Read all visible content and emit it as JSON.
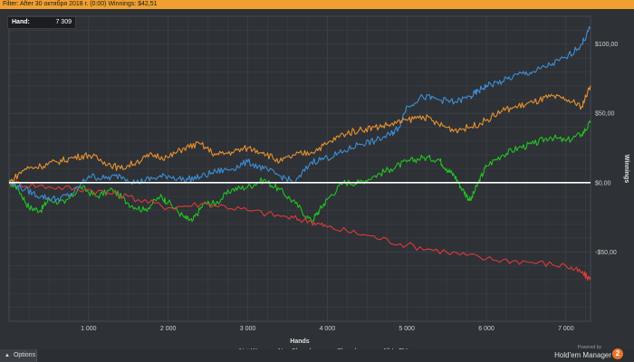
{
  "header": {
    "filter_text": "Filter: After 30 октября 2018 г. (0:00)  Winnings: $42,51"
  },
  "hand_box": {
    "label": "Hand:",
    "value": "7 309"
  },
  "options_label": "Options",
  "brand": {
    "powered_by": "Powered by",
    "name": "Hold'em Manager",
    "logo_text": "2"
  },
  "colors": {
    "background": "#2e3136",
    "grid": "#454950",
    "zero_line": "#ffffff",
    "net_won": "#22c322",
    "non_showdown": "#dd3a3a",
    "showdown": "#3d8fd6",
    "all_in_ev": "#e8922e"
  },
  "chart_data": {
    "type": "line",
    "xlabel": "Hands",
    "ylabel": "Winnings",
    "xlim": [
      0,
      7309
    ],
    "ylim": [
      -100,
      120
    ],
    "x_ticks": [
      1000,
      2000,
      3000,
      4000,
      5000,
      6000,
      7000
    ],
    "x_tick_labels": [
      "1 000",
      "2 000",
      "3 000",
      "4 000",
      "5 000",
      "6 000",
      "7 000"
    ],
    "y_ticks": [
      100,
      50,
      0,
      -50
    ],
    "y_tick_labels": [
      "$100,00",
      "$50,00",
      "$0,00",
      "-$50,00"
    ],
    "grid": true,
    "legend_position": "bottom-center",
    "series": [
      {
        "name": "Net Won",
        "color": "#22c322",
        "points": [
          [
            0,
            0
          ],
          [
            100,
            -3
          ],
          [
            250,
            -18
          ],
          [
            400,
            -20
          ],
          [
            500,
            -12
          ],
          [
            700,
            -15
          ],
          [
            900,
            -3
          ],
          [
            1100,
            -10
          ],
          [
            1300,
            -5
          ],
          [
            1500,
            -15
          ],
          [
            1700,
            -20
          ],
          [
            1900,
            -10
          ],
          [
            2000,
            -14
          ],
          [
            2200,
            -25
          ],
          [
            2300,
            -28
          ],
          [
            2450,
            -15
          ],
          [
            2600,
            -15
          ],
          [
            2800,
            -5
          ],
          [
            3000,
            -3
          ],
          [
            3200,
            2
          ],
          [
            3400,
            -5
          ],
          [
            3600,
            -15
          ],
          [
            3800,
            -28
          ],
          [
            3900,
            -20
          ],
          [
            4000,
            -12
          ],
          [
            4200,
            0
          ],
          [
            4400,
            0
          ],
          [
            4600,
            5
          ],
          [
            4800,
            10
          ],
          [
            5000,
            15
          ],
          [
            5200,
            18
          ],
          [
            5400,
            17
          ],
          [
            5500,
            10
          ],
          [
            5600,
            5
          ],
          [
            5700,
            -5
          ],
          [
            5800,
            -13
          ],
          [
            5900,
            0
          ],
          [
            6000,
            12
          ],
          [
            6200,
            20
          ],
          [
            6400,
            25
          ],
          [
            6600,
            28
          ],
          [
            6800,
            33
          ],
          [
            7000,
            30
          ],
          [
            7200,
            35
          ],
          [
            7309,
            43
          ]
        ]
      },
      {
        "name": "Non Showdown",
        "color": "#dd3a3a",
        "points": [
          [
            0,
            0
          ],
          [
            500,
            -3
          ],
          [
            1000,
            -5
          ],
          [
            1500,
            -10
          ],
          [
            2000,
            -18
          ],
          [
            2500,
            -15
          ],
          [
            3000,
            -20
          ],
          [
            3500,
            -25
          ],
          [
            3800,
            -28
          ],
          [
            4000,
            -32
          ],
          [
            4500,
            -38
          ],
          [
            5000,
            -45
          ],
          [
            5500,
            -50
          ],
          [
            6000,
            -55
          ],
          [
            6500,
            -57
          ],
          [
            7000,
            -60
          ],
          [
            7200,
            -65
          ],
          [
            7309,
            -70
          ]
        ]
      },
      {
        "name": "Showdown",
        "color": "#3d8fd6",
        "points": [
          [
            0,
            0
          ],
          [
            200,
            -5
          ],
          [
            400,
            -10
          ],
          [
            600,
            -12
          ],
          [
            800,
            -8
          ],
          [
            1000,
            5
          ],
          [
            1200,
            3
          ],
          [
            1400,
            5
          ],
          [
            1600,
            0
          ],
          [
            1800,
            3
          ],
          [
            2000,
            5
          ],
          [
            2200,
            2
          ],
          [
            2400,
            4
          ],
          [
            2600,
            8
          ],
          [
            2800,
            10
          ],
          [
            3000,
            15
          ],
          [
            3200,
            10
          ],
          [
            3400,
            5
          ],
          [
            3600,
            0
          ],
          [
            3800,
            15
          ],
          [
            4000,
            18
          ],
          [
            4200,
            22
          ],
          [
            4400,
            28
          ],
          [
            4600,
            30
          ],
          [
            4800,
            35
          ],
          [
            4900,
            40
          ],
          [
            5000,
            55
          ],
          [
            5200,
            62
          ],
          [
            5400,
            60
          ],
          [
            5600,
            58
          ],
          [
            5800,
            62
          ],
          [
            5900,
            66
          ],
          [
            6000,
            70
          ],
          [
            6200,
            73
          ],
          [
            6400,
            78
          ],
          [
            6600,
            80
          ],
          [
            6800,
            85
          ],
          [
            7000,
            90
          ],
          [
            7200,
            100
          ],
          [
            7309,
            112
          ]
        ]
      },
      {
        "name": "All-In EV",
        "color": "#e8922e",
        "points": [
          [
            0,
            0
          ],
          [
            200,
            10
          ],
          [
            400,
            12
          ],
          [
            600,
            15
          ],
          [
            800,
            18
          ],
          [
            1000,
            20
          ],
          [
            1200,
            15
          ],
          [
            1400,
            10
          ],
          [
            1600,
            15
          ],
          [
            1800,
            20
          ],
          [
            2000,
            18
          ],
          [
            2200,
            25
          ],
          [
            2400,
            28
          ],
          [
            2600,
            20
          ],
          [
            2800,
            22
          ],
          [
            3000,
            25
          ],
          [
            3200,
            22
          ],
          [
            3400,
            15
          ],
          [
            3600,
            20
          ],
          [
            3800,
            22
          ],
          [
            4000,
            28
          ],
          [
            4200,
            35
          ],
          [
            4400,
            38
          ],
          [
            4600,
            40
          ],
          [
            4800,
            42
          ],
          [
            5000,
            45
          ],
          [
            5200,
            48
          ],
          [
            5400,
            42
          ],
          [
            5600,
            38
          ],
          [
            5800,
            40
          ],
          [
            6000,
            45
          ],
          [
            6200,
            52
          ],
          [
            6400,
            55
          ],
          [
            6600,
            58
          ],
          [
            6800,
            62
          ],
          [
            7000,
            60
          ],
          [
            7200,
            55
          ],
          [
            7309,
            70
          ]
        ]
      }
    ]
  }
}
